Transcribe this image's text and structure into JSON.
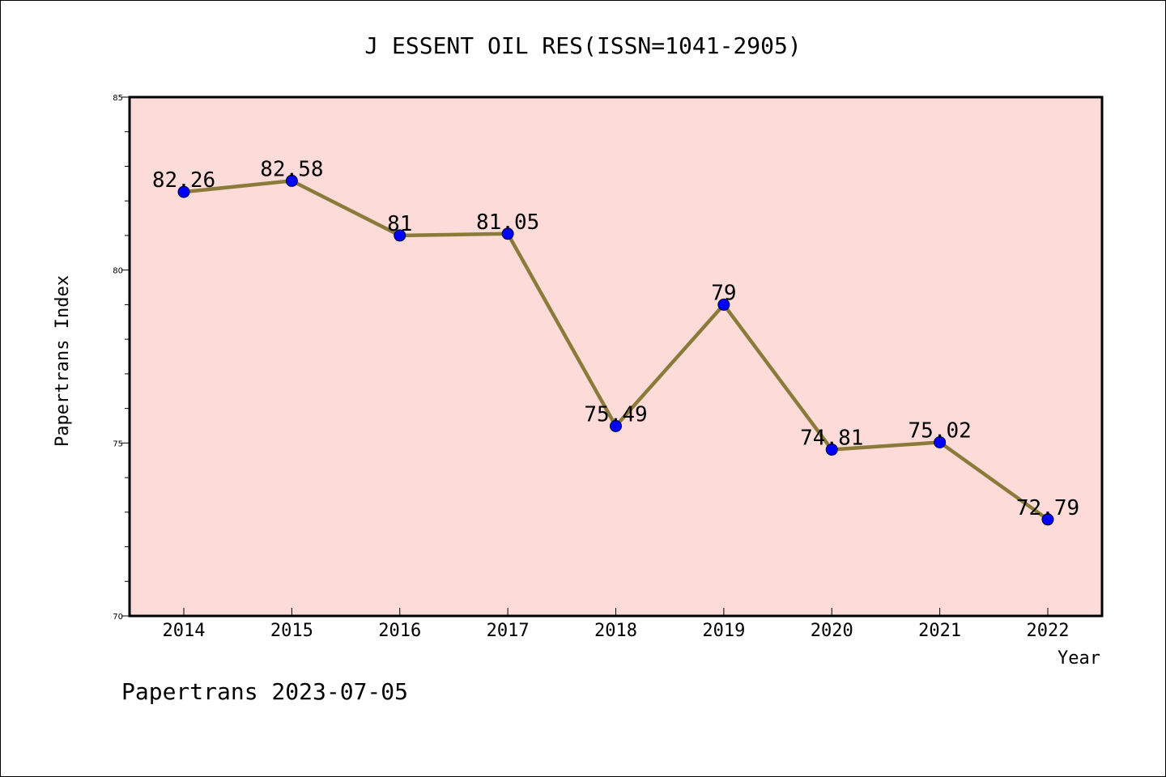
{
  "chart_data": {
    "type": "line",
    "title": "J ESSENT OIL RES(ISSN=1041-2905)",
    "xlabel": "Year",
    "ylabel": "Papertrans Index",
    "categories": [
      "2014",
      "2015",
      "2016",
      "2017",
      "2018",
      "2019",
      "2020",
      "2021",
      "2022"
    ],
    "values": [
      82.26,
      82.58,
      81,
      81.05,
      75.49,
      79,
      74.81,
      75.02,
      72.79
    ],
    "data_labels": [
      "82.26",
      "82.58",
      "81",
      "81.05",
      "75.49",
      "79",
      "74.81",
      "75.02",
      "72.79"
    ],
    "ylim": [
      70,
      85
    ],
    "yticks": [
      70,
      75,
      80,
      85
    ],
    "ytick_labels": [
      "70",
      "75",
      "80",
      "85"
    ],
    "grid": false,
    "legend": "none",
    "colors": {
      "plot_background": "#fddbd8",
      "line": "#8b7b3a",
      "marker": "#0000ff",
      "marker_edge": "#000033"
    }
  },
  "footer": {
    "text": "Papertrans 2023-07-05"
  }
}
